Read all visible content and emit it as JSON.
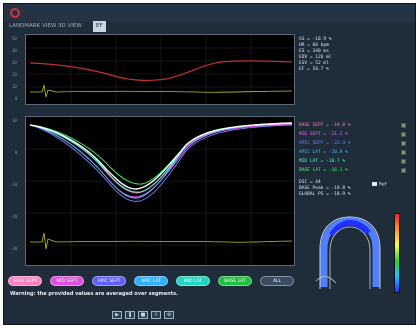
{
  "app": {
    "brand": "",
    "accent": "#d83030"
  },
  "tabs": [
    {
      "label": "LANDMARK VIEW",
      "active": false
    },
    {
      "label": "3D VIEW",
      "active": false
    },
    {
      "label": "EF",
      "active": true
    }
  ],
  "top_chart": {
    "yticks": [
      "50",
      "40",
      "30",
      "20",
      "10",
      "0"
    ]
  },
  "main_chart": {
    "yticks": [
      "10",
      "0",
      "-10",
      "-20",
      "-30"
    ]
  },
  "stats": {
    "lines": [
      "GS = -18.9 %",
      "HR = 66 bpm",
      "ES = 340 ms",
      "EDV = 126 ml",
      "ESV = 52 ml",
      "EF = 58.7 %"
    ]
  },
  "legend": [
    {
      "label": "BASE SEPT = -19.8 %",
      "color": "#ff80c0"
    },
    {
      "label": "MID SEPT = -21.2 %",
      "color": "#ff60ff"
    },
    {
      "label": "APIC SEPT = -22.4 %",
      "color": "#8080ff"
    },
    {
      "label": "APIC LAT = -20.9 %",
      "color": "#40c0ff"
    },
    {
      "label": "MID LAT = -18.7 %",
      "color": "#40ffe0"
    },
    {
      "label": "BASE LAT = -16.1 %",
      "color": "#40ff60"
    }
  ],
  "seg_info": {
    "lines": [
      "DSI = 44",
      "BASE Peak = -19.8 %",
      "GLOBAL PS = -18.9 %"
    ]
  },
  "reference_label": "Ref",
  "segment_buttons": [
    {
      "label": "BASE SEPT",
      "color": "#ff80c0"
    },
    {
      "label": "MID SEPT",
      "color": "#e050e0"
    },
    {
      "label": "APIC SEPT",
      "color": "#6060ff"
    },
    {
      "label": "APIC LAT",
      "color": "#30b0ff"
    },
    {
      "label": "MID LAT",
      "color": "#20d8c0"
    },
    {
      "label": "BASE LAT",
      "color": "#20c040"
    },
    {
      "label": "ALL",
      "color": "#3a4c60"
    }
  ],
  "warning": "Warning: the provided values are averaged over segments.",
  "toolbar_icons": [
    "play-icon",
    "pause-icon",
    "stop-icon",
    "export-icon",
    "zoom-icon"
  ]
}
